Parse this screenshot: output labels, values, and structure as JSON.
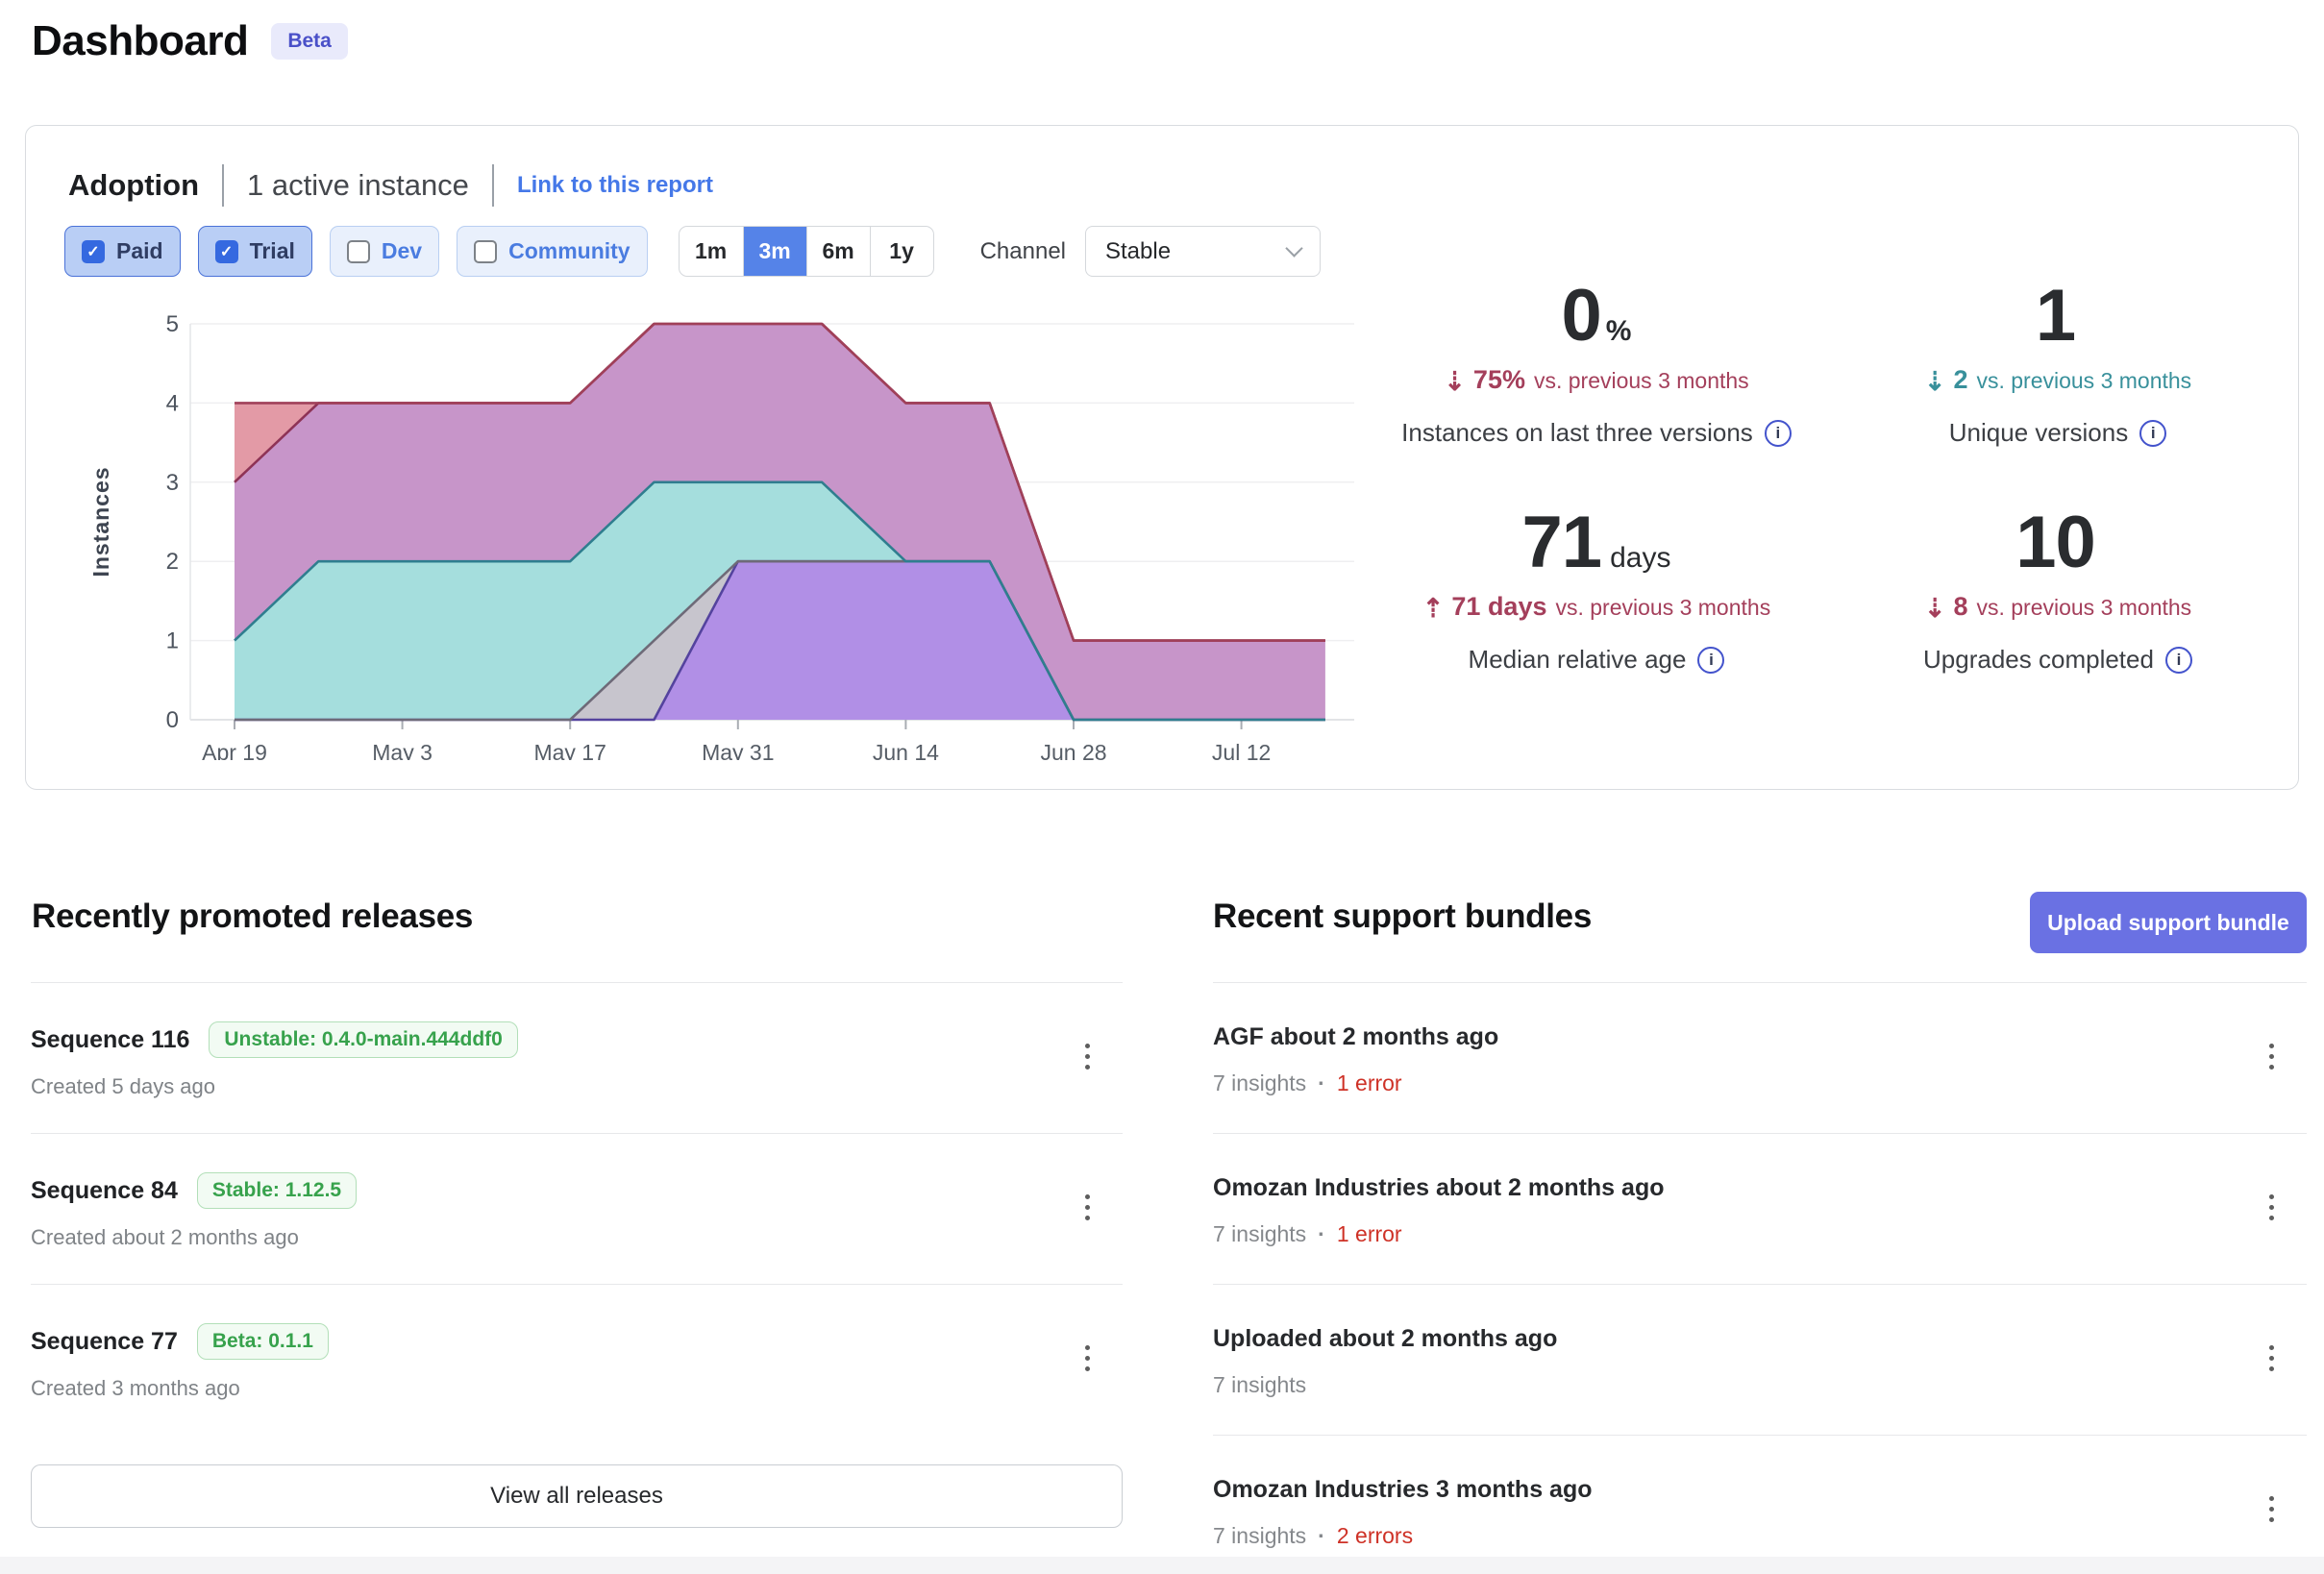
{
  "page": {
    "title": "Dashboard",
    "badge": "Beta"
  },
  "colors": {
    "accent_blue": "#5583e8",
    "link_blue": "#4578e8",
    "upload_indigo": "#6a71e3",
    "beta_badge_bg": "#e9eafb",
    "beta_badge_text": "#4a50c8",
    "delta_red": "#a43f5b",
    "delta_teal": "#38909b",
    "release_badge_green": "#37a24c",
    "error_red": "#ce3126"
  },
  "adoption": {
    "title": "Adoption",
    "subtitle": "1 active instance",
    "link": "Link to this report",
    "filters": [
      {
        "label": "Paid",
        "checked": true
      },
      {
        "label": "Trial",
        "checked": true
      },
      {
        "label": "Dev",
        "checked": false
      },
      {
        "label": "Community",
        "checked": false
      }
    ],
    "ranges": [
      {
        "label": "1m",
        "selected": false
      },
      {
        "label": "3m",
        "selected": true
      },
      {
        "label": "6m",
        "selected": false
      },
      {
        "label": "1y",
        "selected": false
      }
    ],
    "channel": {
      "label": "Channel",
      "value": "Stable"
    },
    "stats": [
      {
        "value": "0",
        "unit": "%",
        "arrow": "⇣",
        "delta": "75%",
        "delta_rest": "vs. previous 3 months",
        "trend_color": "#a43f5b",
        "label": "Instances on last three versions"
      },
      {
        "value": "1",
        "unit": "",
        "arrow": "⇣",
        "delta": "2",
        "delta_rest": "vs. previous 3 months",
        "trend_color": "#38909b",
        "label": "Unique versions"
      },
      {
        "value": "71",
        "unit": "days",
        "arrow": "⇡",
        "delta": "71 days",
        "delta_rest": "vs. previous 3 months",
        "trend_color": "#a43f5b",
        "label": "Median relative age"
      },
      {
        "value": "10",
        "unit": "",
        "arrow": "⇣",
        "delta": "8",
        "delta_rest": "vs. previous 3 months",
        "trend_color": "#a43f5b",
        "label": "Upgrades completed"
      }
    ]
  },
  "chart_data": {
    "type": "area",
    "stacked": true,
    "title": "",
    "xlabel": "",
    "ylabel": "Instances",
    "ylim": [
      0,
      5
    ],
    "yticks": [
      0,
      1,
      2,
      3,
      4,
      5
    ],
    "grid": "horizontal",
    "legend": "none",
    "x": [
      "Apr 19",
      "Apr 26",
      "May 3",
      "May 10",
      "May 17",
      "May 24",
      "May 31",
      "Jun 7",
      "Jun 14",
      "Jun 21",
      "Jun 28",
      "Jul 5",
      "Jul 12",
      "Jul 19"
    ],
    "xtick_labels": [
      "Apr 19",
      "May 3",
      "May 17",
      "May 31",
      "Jun 14",
      "Jun 28",
      "Jul 12"
    ],
    "series": [
      {
        "name": "purple-version",
        "fill": "#b18fe6",
        "stroke": "#54439e",
        "values": [
          0,
          0,
          0,
          0,
          0,
          0,
          2,
          2,
          2,
          2,
          0,
          0,
          0,
          0
        ]
      },
      {
        "name": "gray-version",
        "fill": "#c7c5cd",
        "stroke": "#6e6a78",
        "values": [
          0,
          0,
          0,
          0,
          0,
          1,
          0,
          0,
          0,
          0,
          0,
          0,
          0,
          0
        ]
      },
      {
        "name": "teal-version",
        "fill": "#a5dedd",
        "stroke": "#2f7e8f",
        "values": [
          1,
          2,
          2,
          2,
          2,
          2,
          1,
          1,
          0,
          0,
          0,
          0,
          0,
          0
        ]
      },
      {
        "name": "magenta-version",
        "fill": "#c795c9",
        "stroke": "#8e3356",
        "values": [
          2,
          2,
          2,
          2,
          2,
          2,
          2,
          2,
          2,
          2,
          1,
          1,
          1,
          1
        ]
      },
      {
        "name": "salmon-version",
        "fill": "#e39aa6",
        "stroke": "#a04059",
        "values": [
          1,
          0,
          0,
          0,
          0,
          0,
          0,
          0,
          0,
          0,
          0,
          0,
          0,
          0
        ]
      }
    ]
  },
  "releases": {
    "heading": "Recently promoted releases",
    "view_all": "View all releases",
    "items": [
      {
        "title": "Sequence 116",
        "badge": "Unstable: 0.4.0-main.444ddf0",
        "created": "Created 5 days ago"
      },
      {
        "title": "Sequence 84",
        "badge": "Stable: 1.12.5",
        "created": "Created about 2 months ago"
      },
      {
        "title": "Sequence 77",
        "badge": "Beta: 0.1.1",
        "created": "Created 3 months ago"
      }
    ]
  },
  "bundles": {
    "heading": "Recent support bundles",
    "upload_label": "Upload support bundle",
    "items": [
      {
        "title": "AGF about 2 months ago",
        "insights": "7 insights",
        "sep": "·",
        "errors": "1 error"
      },
      {
        "title": "Omozan Industries about 2 months ago",
        "insights": "7 insights",
        "sep": "·",
        "errors": "1 error"
      },
      {
        "title": "Uploaded about 2 months ago",
        "insights": "7 insights",
        "sep": "",
        "errors": ""
      },
      {
        "title": "Omozan Industries 3 months ago",
        "insights": "7 insights",
        "sep": "·",
        "errors": "2 errors"
      }
    ]
  }
}
